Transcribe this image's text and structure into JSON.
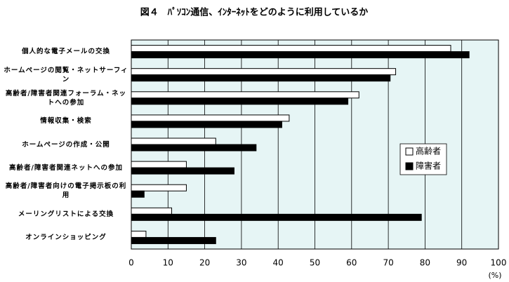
{
  "chart_data": {
    "type": "hbar",
    "title": "図４　ﾊﾟｿｺﾝ通信、ｲﾝﾀｰﾈｯﾄをどのように利用しているか",
    "x_unit": "(%)",
    "categories": [
      "個人的な電子メールの交換",
      "ホームページの閲覧・ネットサーフィン",
      "高齢者/障害者関連フォーラム・ネットへの参加",
      "情報収集・検索",
      "ホームページの作成・公開",
      "高齢者/障害者関連ネットへの参加",
      "高齢者/障害者向けの電子掲示板の利用",
      "メーリングリストによる交換",
      "オンラインショッピング"
    ],
    "series": [
      {
        "name": "高齢者",
        "color": "#ffffff",
        "values": [
          87,
          72,
          62,
          43,
          23,
          15,
          15,
          11,
          4
        ]
      },
      {
        "name": "障害者",
        "color": "#000000",
        "values": [
          92,
          70.5,
          59,
          41,
          34,
          28,
          3.5,
          79,
          23
        ]
      }
    ],
    "xlim": [
      0,
      100
    ],
    "xticks": [
      0,
      10,
      20,
      30,
      40,
      50,
      60,
      70,
      80,
      90,
      100
    ],
    "grid": true,
    "plot_background": "#e6f5f5"
  }
}
